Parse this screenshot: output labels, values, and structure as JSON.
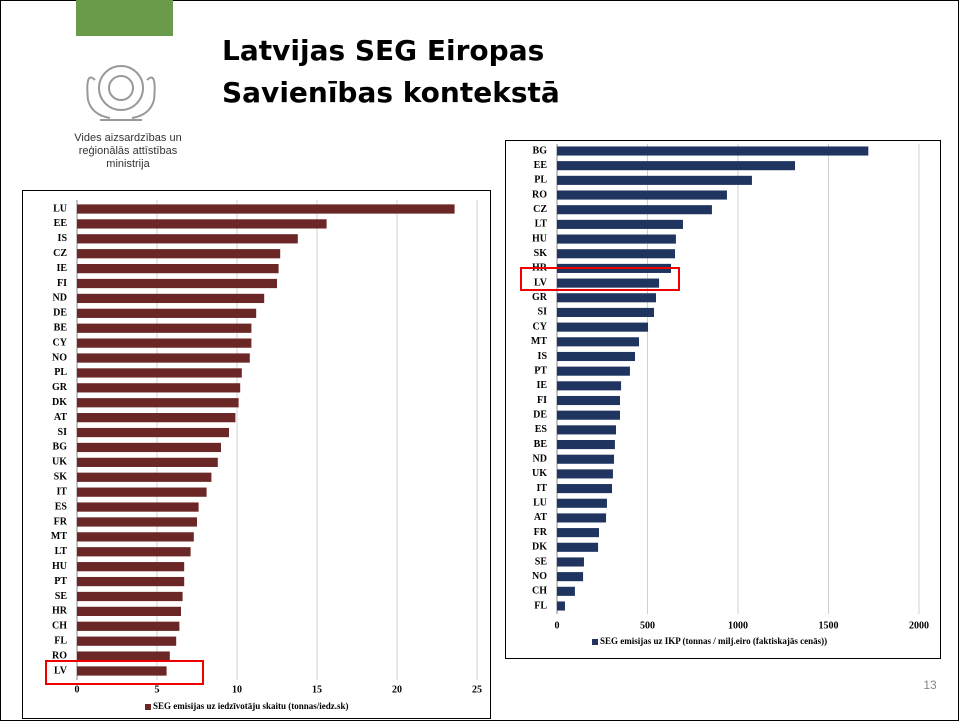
{
  "title_line1": "Latvijas SEG Eiropas",
  "title_line2": "Savienības kontekstā",
  "ministry": [
    "Vides aizsardzības un",
    "reģionālās attīstības",
    "ministrija"
  ],
  "page_number": "13",
  "chart_data": [
    {
      "type": "bar",
      "orientation": "horizontal",
      "categories": [
        "LU",
        "EE",
        "IS",
        "CZ",
        "IE",
        "FI",
        "ND",
        "DE",
        "BE",
        "CY",
        "NO",
        "PL",
        "GR",
        "DK",
        "AT",
        "SI",
        "BG",
        "UK",
        "SK",
        "IT",
        "ES",
        "FR",
        "MT",
        "LT",
        "HU",
        "PT",
        "SE",
        "HR",
        "CH",
        "FL",
        "RO",
        "LV"
      ],
      "series": [
        {
          "name": "SEG emisijas uz iedzīvotāju skaitu (tonnas/iedz.sk)",
          "color": "#6b2626",
          "values": [
            23.6,
            15.6,
            13.8,
            12.7,
            12.6,
            12.5,
            11.7,
            11.2,
            10.9,
            10.9,
            10.8,
            10.3,
            10.2,
            10.1,
            9.9,
            9.5,
            9.0,
            8.8,
            8.4,
            8.1,
            7.6,
            7.5,
            7.3,
            7.1,
            6.7,
            6.7,
            6.6,
            6.5,
            6.4,
            6.2,
            5.8,
            5.6
          ]
        }
      ],
      "xlim": [
        0,
        25
      ],
      "xticks": [
        0,
        5,
        10,
        15,
        20,
        25
      ],
      "grid": true
    },
    {
      "type": "bar",
      "orientation": "horizontal",
      "categories": [
        "BG",
        "EE",
        "PL",
        "RO",
        "CZ",
        "LT",
        "HU",
        "SK",
        "HR",
        "LV",
        "GR",
        "SI",
        "CY",
        "MT",
        "IS",
        "PT",
        "IE",
        "FI",
        "DE",
        "ES",
        "BE",
        "ND",
        "UK",
        "IT",
        "LU",
        "AT",
        "FR",
        "DK",
        "SE",
        "NO",
        "CH",
        "FL"
      ],
      "series": [
        {
          "name": "SEG emisijas uz IKP (tonnas / milj.eiro (faktiskajās cenās))",
          "color": "#1f3560",
          "values": [
            1720,
            1315,
            1077,
            939,
            856,
            696,
            657,
            652,
            630,
            564,
            547,
            536,
            503,
            453,
            431,
            403,
            354,
            348,
            348,
            326,
            320,
            315,
            309,
            304,
            276,
            271,
            232,
            227,
            149,
            144,
            99,
            44
          ]
        }
      ],
      "xlim": [
        0,
        2000
      ],
      "xticks": [
        0,
        500,
        1000,
        1500,
        2000
      ],
      "grid": true
    }
  ]
}
